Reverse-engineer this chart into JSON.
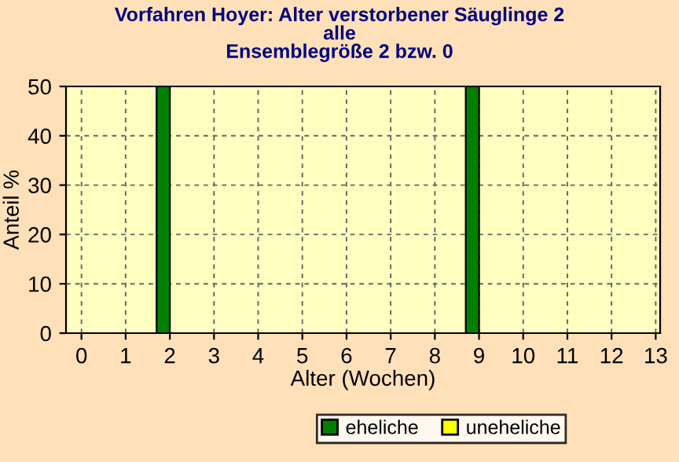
{
  "chart_data": {
    "type": "bar",
    "title": "Vorfahren Hoyer: Alter verstorbener Säuglinge 2\nalle\nEnsemblegröße 2 bzw. 0",
    "xlabel": "Alter (Wochen)",
    "ylabel": "Anteil %",
    "x": [
      0,
      1,
      2,
      3,
      4,
      5,
      6,
      7,
      8,
      9,
      10,
      11,
      12
    ],
    "series": [
      {
        "name": "eheliche",
        "color": "#008000",
        "values": [
          0,
          0,
          50,
          0,
          0,
          0,
          0,
          0,
          0,
          50,
          0,
          0,
          0
        ]
      },
      {
        "name": "uneheliche",
        "color": "#ffff00",
        "values": [
          0,
          0,
          0,
          0,
          0,
          0,
          0,
          0,
          0,
          0,
          0,
          0,
          0
        ]
      }
    ],
    "xlim": [
      -0.35,
      13.1
    ],
    "xticks": [
      0,
      1,
      2,
      3,
      4,
      5,
      6,
      7,
      8,
      9,
      10,
      11,
      12,
      13
    ],
    "ylim": [
      0,
      50
    ],
    "yticks": [
      0,
      10,
      20,
      30,
      40,
      50
    ],
    "grid": true,
    "legend": "bottom"
  }
}
